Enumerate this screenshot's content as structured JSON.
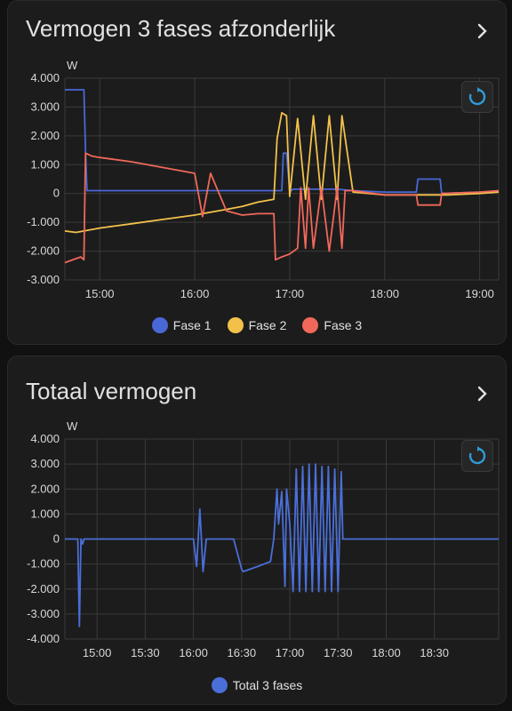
{
  "colors": {
    "fase1": "#4868d8",
    "fase2": "#f3c14b",
    "fase3": "#f0685a",
    "total": "#4a6fd8",
    "grid": "#3a3a3a",
    "axis_text": "#d8d8d8",
    "reset_icon": "#2f9bd8"
  },
  "icons": {
    "chevron": "chevron-right-icon",
    "reset": "reset-zoom-icon"
  },
  "card1": {
    "title": "Vermogen 3 fases afzonderlijk",
    "unit": "W",
    "legend": [
      "Fase 1",
      "Fase 2",
      "Fase 3"
    ]
  },
  "card2": {
    "title": "Totaal vermogen",
    "unit": "W",
    "legend": [
      "Total 3 fases"
    ]
  },
  "chart_data": [
    {
      "type": "line",
      "title": "Vermogen 3 fases afzonderlijk",
      "ylabel": "W",
      "xlabel": "",
      "ylim": [
        -3000,
        4000
      ],
      "xlim": [
        "14:38",
        "19:12"
      ],
      "x_ticks": [
        "15:00",
        "16:00",
        "17:00",
        "18:00",
        "19:00"
      ],
      "y_ticks": [
        "4.000",
        "3.000",
        "2.000",
        "1.000",
        "0",
        "-1.000",
        "-2.000",
        "-3.000"
      ],
      "grid": true,
      "legend_position": "bottom",
      "series": [
        {
          "name": "Fase 1",
          "x": [
            "14:38",
            "14:50",
            "14:51",
            "14:52",
            "16:55",
            "16:56",
            "16:58",
            "17:00",
            "17:01",
            "17:02",
            "17:10",
            "17:20",
            "17:30",
            "17:40",
            "18:00",
            "18:20",
            "18:21",
            "18:35",
            "18:36",
            "19:00",
            "19:12"
          ],
          "y": [
            3600,
            3600,
            1500,
            100,
            100,
            1400,
            1400,
            100,
            100,
            150,
            150,
            150,
            150,
            100,
            50,
            50,
            500,
            500,
            0,
            50,
            50
          ]
        },
        {
          "name": "Fase 2",
          "x": [
            "14:38",
            "14:45",
            "14:50",
            "14:55",
            "15:00",
            "15:20",
            "15:40",
            "16:00",
            "16:10",
            "16:20",
            "16:30",
            "16:40",
            "16:50",
            "16:52",
            "16:55",
            "16:58",
            "17:00",
            "17:05",
            "17:10",
            "17:15",
            "17:20",
            "17:25",
            "17:30",
            "17:33",
            "17:40",
            "18:00",
            "18:20",
            "18:40",
            "19:00",
            "19:12"
          ],
          "y": [
            -1300,
            -1350,
            -1300,
            -1250,
            -1200,
            -1050,
            -900,
            -750,
            -650,
            -550,
            -450,
            -300,
            -200,
            1900,
            2800,
            2700,
            -100,
            2600,
            -200,
            2700,
            -200,
            2700,
            -200,
            2700,
            50,
            -50,
            -50,
            -50,
            0,
            50
          ]
        },
        {
          "name": "Fase 3",
          "x": [
            "14:38",
            "14:48",
            "14:50",
            "14:51",
            "14:55",
            "15:00",
            "15:20",
            "15:40",
            "16:00",
            "16:05",
            "16:10",
            "16:20",
            "16:30",
            "16:40",
            "16:50",
            "16:51",
            "16:55",
            "17:00",
            "17:05",
            "17:07",
            "17:10",
            "17:12",
            "17:15",
            "17:20",
            "17:25",
            "17:30",
            "17:33",
            "17:35",
            "17:40",
            "18:00",
            "18:20",
            "18:21",
            "18:35",
            "18:36",
            "19:00",
            "19:12"
          ],
          "y": [
            -2400,
            -2200,
            -2300,
            1400,
            1300,
            1250,
            1100,
            900,
            700,
            -800,
            700,
            -600,
            -750,
            -700,
            -700,
            -2300,
            -2200,
            -2100,
            -1900,
            200,
            -1900,
            200,
            -1900,
            200,
            -2000,
            200,
            -1900,
            100,
            100,
            -50,
            -50,
            -400,
            -400,
            0,
            50,
            100
          ]
        }
      ]
    },
    {
      "type": "line",
      "title": "Totaal vermogen",
      "ylabel": "W",
      "xlabel": "",
      "ylim": [
        -4000,
        4000
      ],
      "xlim": [
        "14:40",
        "19:10"
      ],
      "x_ticks": [
        "15:00",
        "15:30",
        "16:00",
        "16:30",
        "17:00",
        "17:30",
        "18:00",
        "18:30"
      ],
      "y_ticks": [
        "4.000",
        "3.000",
        "2.000",
        "1.000",
        "0",
        "-1.000",
        "-2.000",
        "-3.000",
        "-4.000"
      ],
      "grid": true,
      "legend_position": "bottom",
      "series": [
        {
          "name": "Total 3 fases",
          "x": [
            "14:40",
            "14:48",
            "14:49",
            "14:50",
            "14:51",
            "14:52",
            "14:55",
            "15:00",
            "15:20",
            "15:40",
            "15:55",
            "16:00",
            "16:02",
            "16:04",
            "16:05",
            "16:06",
            "16:08",
            "16:20",
            "16:25",
            "16:30",
            "16:31",
            "16:40",
            "16:48",
            "16:50",
            "16:52",
            "16:53",
            "16:55",
            "16:57",
            "16:58",
            "17:00",
            "17:02",
            "17:04",
            "17:06",
            "17:08",
            "17:10",
            "17:12",
            "17:14",
            "17:16",
            "17:18",
            "17:20",
            "17:22",
            "17:24",
            "17:26",
            "17:28",
            "17:30",
            "17:32",
            "17:33",
            "17:40",
            "18:00",
            "18:20",
            "18:40",
            "19:00",
            "19:10"
          ],
          "y": [
            0,
            0,
            -3500,
            0,
            -200,
            0,
            0,
            0,
            0,
            0,
            0,
            0,
            -1100,
            1200,
            0,
            -1300,
            0,
            0,
            0,
            -1200,
            -1300,
            -1100,
            -900,
            0,
            2000,
            600,
            1900,
            -1900,
            2000,
            600,
            -2100,
            2800,
            -2100,
            2900,
            -2100,
            3000,
            -2100,
            3000,
            -2100,
            2900,
            -2100,
            2900,
            -2100,
            2800,
            -2100,
            2700,
            0,
            0,
            0,
            0,
            0,
            0,
            0
          ]
        }
      ]
    }
  ]
}
